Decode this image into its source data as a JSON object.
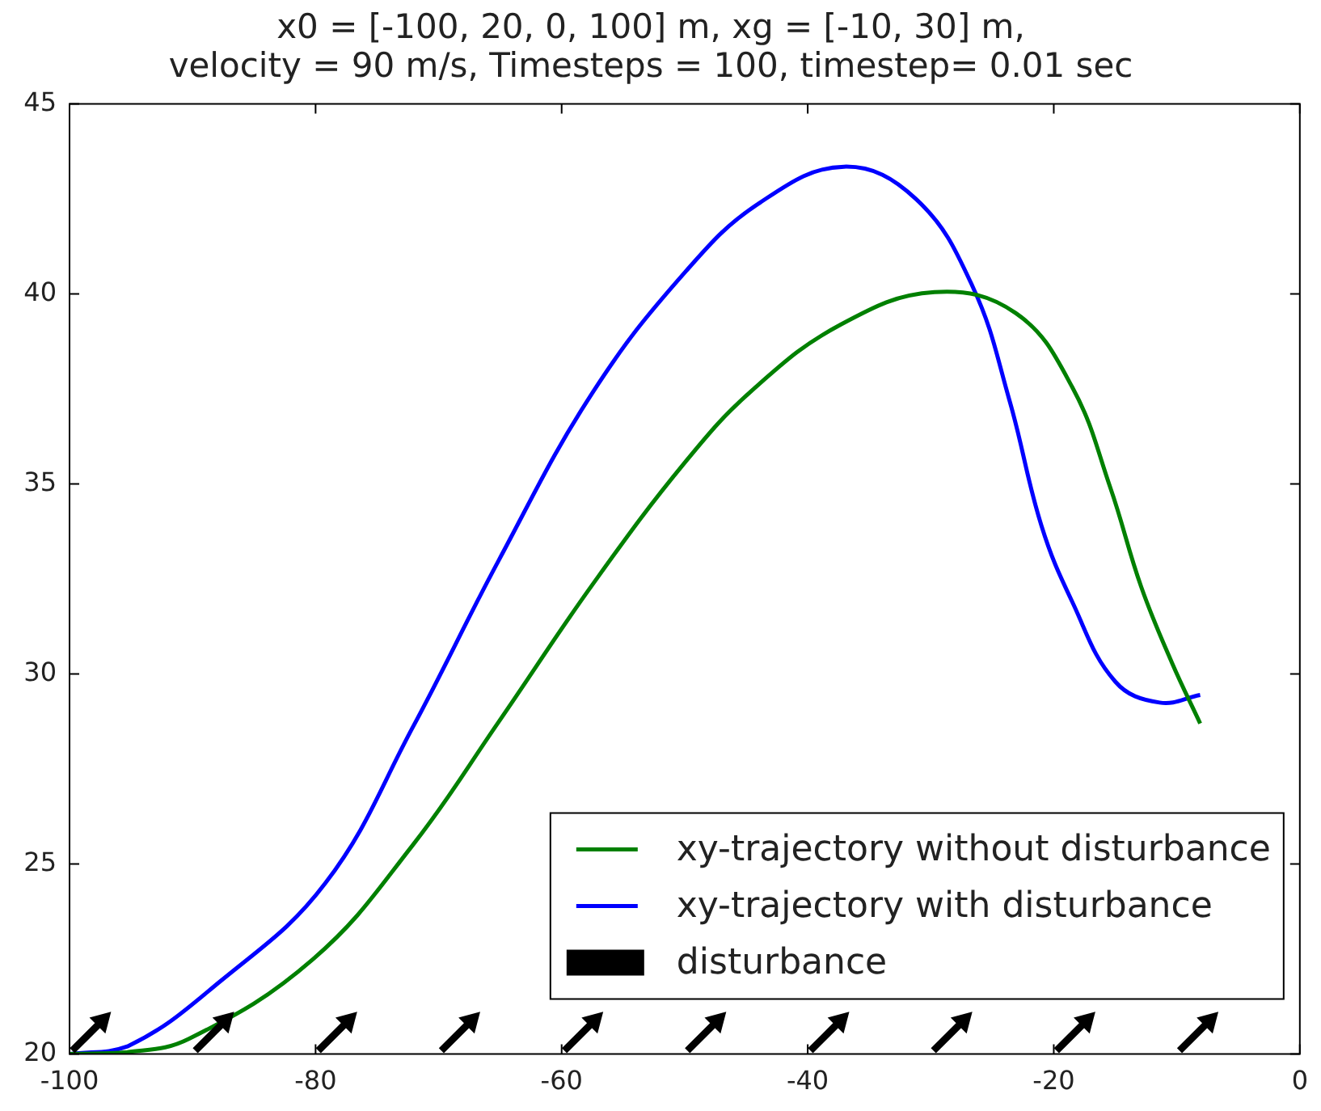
{
  "chart_data": {
    "type": "line",
    "title": "x0 = [-100, 20, 0, 100] m, xg = [-10, 30] m,\nvelocity = 90 m/s, Timesteps = 100, timestep= 0.01 sec",
    "xlim": [
      -100,
      0
    ],
    "xticks": [
      -100,
      -80,
      -60,
      -40,
      -20,
      0
    ],
    "ylim": [
      20,
      45
    ],
    "yticks": [
      20,
      25,
      30,
      35,
      40,
      45
    ],
    "grid": false,
    "legend": "bottom right",
    "line_style": "solid",
    "series": [
      {
        "name": "xy-trajectory without disturbance",
        "color": "#008000",
        "x": [
          -100,
          -95.3,
          -90.3,
          -80.2,
          -72.1,
          -65.1,
          -57.5,
          -49.9,
          -44.4,
          -37.3,
          -29.7,
          -23.1,
          -18.5,
          -15.4,
          -12.9,
          -10.4,
          -8.1
        ],
        "values": [
          20,
          20.05,
          20.4,
          22.5,
          25.5,
          28.75,
          32.35,
          35.6,
          37.5,
          39.2,
          40.05,
          39.5,
          37.55,
          34.9,
          32.3,
          30.3,
          28.7
        ]
      },
      {
        "name": "xy-trajectory with disturbance",
        "color": "#0000ff",
        "x": [
          -100,
          -95.3,
          -87.8,
          -79.2,
          -72.1,
          -65.1,
          -57.5,
          -49.9,
          -43.9,
          -37.05,
          -31.2,
          -26.6,
          -23.6,
          -21.0,
          -18.5,
          -15.0,
          -11.4,
          -8.1
        ],
        "values": [
          20,
          20.2,
          21.9,
          24.5,
          28.6,
          33.0,
          37.4,
          40.6,
          42.4,
          43.35,
          42.5,
          40.2,
          37.2,
          33.9,
          31.9,
          29.8,
          29.25,
          29.45
        ]
      },
      {
        "name": "disturbance",
        "color": "#000000",
        "type": "scatter",
        "x": [
          -98.2,
          -88.2,
          -78.2,
          -68.2,
          -58.2,
          -48.2,
          -38.2,
          -28.2,
          -18.2,
          -8.2
        ],
        "values": [
          20.6,
          20.6,
          20.6,
          20.6,
          20.6,
          20.6,
          20.6,
          20.6,
          20.6,
          20.6
        ]
      }
    ]
  }
}
